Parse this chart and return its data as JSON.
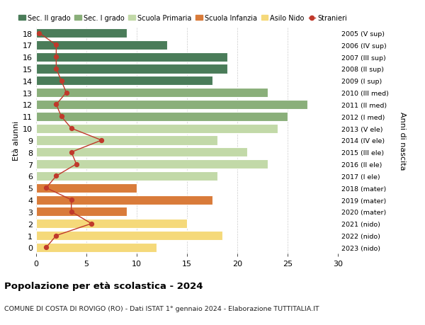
{
  "ages": [
    18,
    17,
    16,
    15,
    14,
    13,
    12,
    11,
    10,
    9,
    8,
    7,
    6,
    5,
    4,
    3,
    2,
    1,
    0
  ],
  "right_labels": [
    "2005 (V sup)",
    "2006 (IV sup)",
    "2007 (III sup)",
    "2008 (II sup)",
    "2009 (I sup)",
    "2010 (III med)",
    "2011 (II med)",
    "2012 (I med)",
    "2013 (V ele)",
    "2014 (IV ele)",
    "2015 (III ele)",
    "2016 (II ele)",
    "2017 (I ele)",
    "2018 (mater)",
    "2019 (mater)",
    "2020 (mater)",
    "2021 (nido)",
    "2022 (nido)",
    "2023 (nido)"
  ],
  "bar_values": [
    9,
    13,
    19,
    19,
    17.5,
    23,
    27,
    25,
    24,
    18,
    21,
    23,
    18,
    10,
    17.5,
    9,
    15,
    18.5,
    12
  ],
  "bar_colors": [
    "#4a7c59",
    "#4a7c59",
    "#4a7c59",
    "#4a7c59",
    "#4a7c59",
    "#8aaf7a",
    "#8aaf7a",
    "#8aaf7a",
    "#c2d9a8",
    "#c2d9a8",
    "#c2d9a8",
    "#c2d9a8",
    "#c2d9a8",
    "#d97b3a",
    "#d97b3a",
    "#d97b3a",
    "#f5d97a",
    "#f5d97a",
    "#f5d97a"
  ],
  "stranieri_values": [
    0.3,
    2,
    2,
    2,
    2.5,
    3,
    2,
    2.5,
    3.5,
    6.5,
    3.5,
    4,
    2,
    1,
    3.5,
    3.5,
    5.5,
    2,
    1
  ],
  "legend_labels": [
    "Sec. II grado",
    "Sec. I grado",
    "Scuola Primaria",
    "Scuola Infanzia",
    "Asilo Nido",
    "Stranieri"
  ],
  "legend_colors": [
    "#4a7c59",
    "#8aaf7a",
    "#c2d9a8",
    "#d97b3a",
    "#f5d97a",
    "#c0392b"
  ],
  "ylabel_left": "Età alunni",
  "ylabel_right": "Anni di nascita",
  "title": "Popolazione per età scolastica - 2024",
  "subtitle": "COMUNE DI COSTA DI ROVIGO (RO) - Dati ISTAT 1° gennaio 2024 - Elaborazione TUTTITALIA.IT",
  "xlim": [
    0,
    30
  ],
  "xticks": [
    0,
    5,
    10,
    15,
    20,
    25,
    30
  ],
  "background_color": "#ffffff",
  "grid_color": "#cccccc"
}
